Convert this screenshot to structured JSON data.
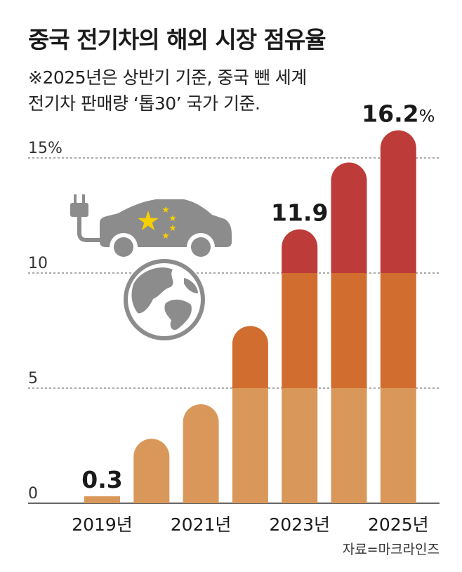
{
  "title": "중국 전기차의 해외 시장 점유율",
  "note_lines": [
    "※2025년은 상반기 기준, 중국 뺀 세계",
    "전기차 판매량 ‘톱30’ 국가 기준."
  ],
  "source": "자료=마크라인즈",
  "colors": {
    "light": "#d9985a",
    "mid": "#d16d2e",
    "dark": "#bd3b38",
    "grid": "#555555",
    "icon": "#8c8c8c",
    "star": "#f5d000"
  },
  "icons": [
    "ev-car-icon",
    "plug-icon",
    "globe-icon",
    "china-flag-stars"
  ],
  "chart_data": {
    "type": "bar",
    "categories": [
      "2019",
      "2020",
      "2021",
      "2022",
      "2023",
      "2024",
      "2025"
    ],
    "values": [
      0.3,
      2.8,
      4.3,
      7.7,
      11.9,
      14.8,
      16.2
    ],
    "ylim": [
      0,
      16.2
    ],
    "yticks": [
      {
        "value": 0,
        "label": "0"
      },
      {
        "value": 5,
        "label": "5"
      },
      {
        "value": 10,
        "label": "10"
      },
      {
        "value": 15,
        "label": "15%"
      }
    ],
    "xtick_labels": [
      {
        "index": 0,
        "label": "2019년"
      },
      {
        "index": 2,
        "label": "2021년"
      },
      {
        "index": 4,
        "label": "2023년"
      },
      {
        "index": 6,
        "label": "2025년"
      }
    ],
    "data_labels": [
      {
        "index": 0,
        "label": "0.3"
      },
      {
        "index": 4,
        "label": "11.9"
      },
      {
        "index": 6,
        "label": "16.2",
        "unit": "%"
      }
    ],
    "color_bands": [
      {
        "from": 0,
        "to": 5,
        "color": "light"
      },
      {
        "from": 5,
        "to": 10,
        "color": "mid"
      },
      {
        "from": 10,
        "to": 17,
        "color": "dark"
      }
    ],
    "grid": "dashed horizontal"
  }
}
